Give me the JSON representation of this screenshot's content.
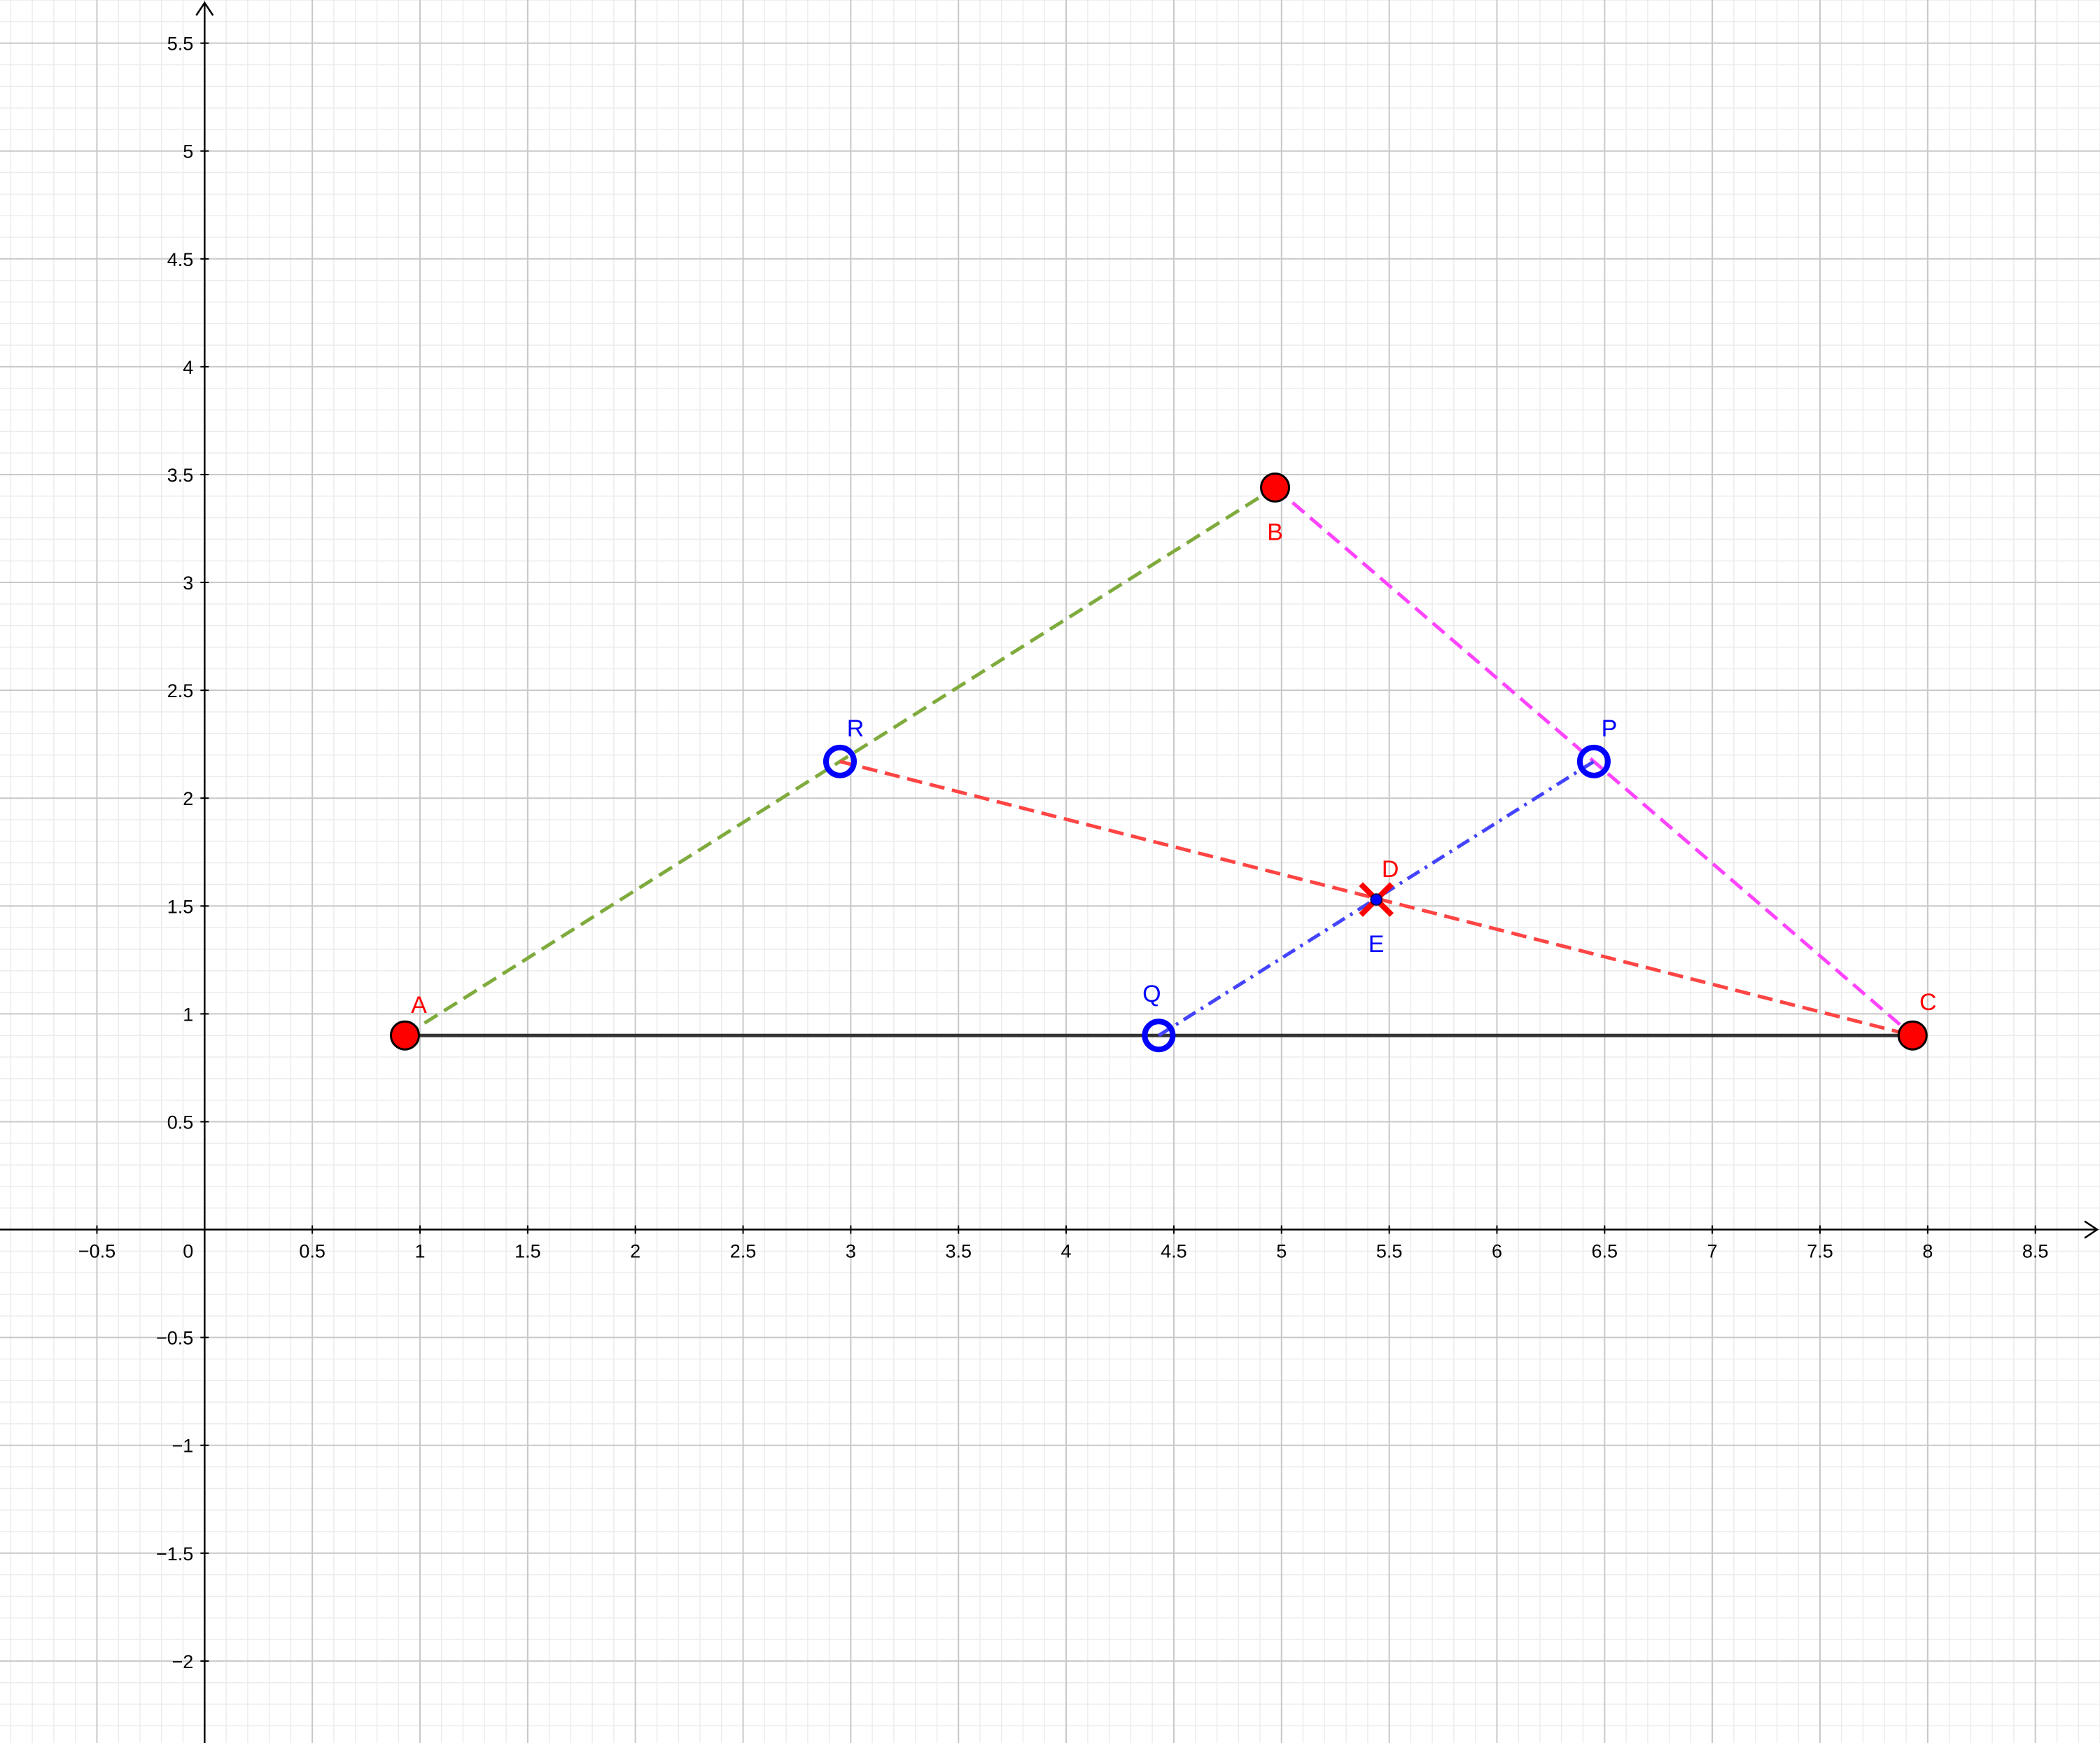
{
  "view": {
    "background": "#ffffff",
    "x_range": [
      -0.95,
      8.8
    ],
    "y_range": [
      -2.38,
      5.7
    ],
    "major_step": 0.5,
    "minor_step": 0.1,
    "grid": true,
    "colors": {
      "axis": "#000000",
      "major_grid": "#c8c8c8",
      "minor_grid": "#ececec",
      "tick_label": "#000000"
    }
  },
  "axes": {
    "x_ticks": [
      {
        "value": -0.5,
        "label": "−0.5"
      },
      {
        "value": 0.5,
        "label": "0.5"
      },
      {
        "value": 1,
        "label": "1"
      },
      {
        "value": 1.5,
        "label": "1.5"
      },
      {
        "value": 2,
        "label": "2"
      },
      {
        "value": 2.5,
        "label": "2.5"
      },
      {
        "value": 3,
        "label": "3"
      },
      {
        "value": 3.5,
        "label": "3.5"
      },
      {
        "value": 4,
        "label": "4"
      },
      {
        "value": 4.5,
        "label": "4.5"
      },
      {
        "value": 5,
        "label": "5"
      },
      {
        "value": 5.5,
        "label": "5.5"
      },
      {
        "value": 6,
        "label": "6"
      },
      {
        "value": 6.5,
        "label": "6.5"
      },
      {
        "value": 7,
        "label": "7"
      },
      {
        "value": 7.5,
        "label": "7.5"
      },
      {
        "value": 8,
        "label": "8"
      },
      {
        "value": 8.5,
        "label": "8.5"
      }
    ],
    "y_ticks": [
      {
        "value": -2,
        "label": "−2"
      },
      {
        "value": -1.5,
        "label": "−1.5"
      },
      {
        "value": -1,
        "label": "−1"
      },
      {
        "value": -0.5,
        "label": "−0.5"
      },
      {
        "value": 0.5,
        "label": "0.5"
      },
      {
        "value": 1,
        "label": "1"
      },
      {
        "value": 1.5,
        "label": "1.5"
      },
      {
        "value": 2,
        "label": "2"
      },
      {
        "value": 2.5,
        "label": "2.5"
      },
      {
        "value": 3,
        "label": "3"
      },
      {
        "value": 3.5,
        "label": "3.5"
      },
      {
        "value": 4,
        "label": "4"
      },
      {
        "value": 4.5,
        "label": "4.5"
      },
      {
        "value": 5,
        "label": "5"
      },
      {
        "value": 5.5,
        "label": "5.5"
      }
    ],
    "origin_label": "0"
  },
  "points": [
    {
      "id": "A",
      "label": "A",
      "x": 0.93,
      "y": 0.9,
      "style": "filled",
      "fill": "#ff0000",
      "stroke": "#000000",
      "label_dir": "above"
    },
    {
      "id": "B",
      "label": "B",
      "x": 4.97,
      "y": 3.44,
      "style": "filled",
      "fill": "#ff0000",
      "stroke": "#000000",
      "label_dir": "below"
    },
    {
      "id": "C",
      "label": "C",
      "x": 7.93,
      "y": 0.9,
      "style": "filled",
      "fill": "#ff0000",
      "stroke": "#000000",
      "label_dir": "above-right"
    },
    {
      "id": "P",
      "label": "P",
      "x": 6.45,
      "y": 2.17,
      "style": "ring",
      "fill": "none",
      "stroke": "#0000ff",
      "label_dir": "above-right"
    },
    {
      "id": "Q",
      "label": "Q",
      "x": 4.43,
      "y": 0.9,
      "style": "ring",
      "fill": "none",
      "stroke": "#0000ff",
      "label_dir": "above-left"
    },
    {
      "id": "R",
      "label": "R",
      "x": 2.95,
      "y": 2.17,
      "style": "ring",
      "fill": "none",
      "stroke": "#0000ff",
      "label_dir": "above-right"
    },
    {
      "id": "D",
      "label": "D",
      "x": 5.44,
      "y": 1.53,
      "style": "cross",
      "fill": "none",
      "stroke": "#ff0000",
      "label_dir": "above"
    },
    {
      "id": "E",
      "label": "E",
      "x": 5.44,
      "y": 1.53,
      "style": "dot",
      "fill": "#0000ff",
      "stroke": "#0000ff",
      "label_dir": "below"
    }
  ],
  "segments": [
    {
      "id": "AC",
      "from": "A",
      "to": "C",
      "color": "#333333",
      "dash": "solid"
    },
    {
      "id": "AB",
      "from": "A",
      "to": "B",
      "color": "#7fab3d",
      "dash": "dashed"
    },
    {
      "id": "BC",
      "from": "B",
      "to": "C",
      "color": "#ff44ff",
      "dash": "dashed"
    },
    {
      "id": "RC",
      "from": "R",
      "to": "C",
      "color": "#ff4444",
      "dash": "dashed"
    },
    {
      "id": "QP",
      "from": "Q",
      "to": "P",
      "color": "#4444ff",
      "dash": "dash-dot"
    }
  ]
}
